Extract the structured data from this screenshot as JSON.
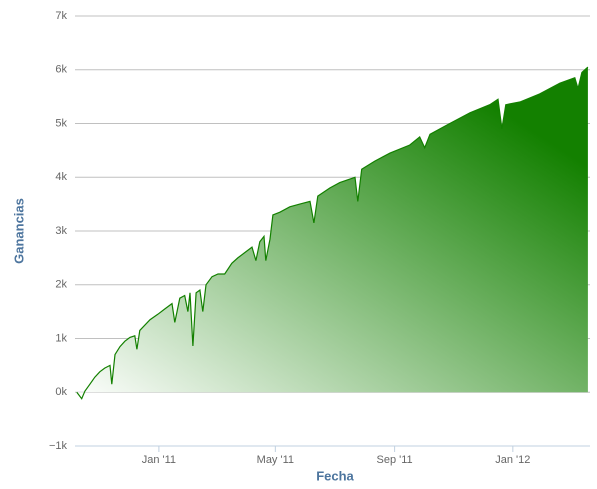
{
  "chart_data": {
    "type": "area",
    "x_title": "Fecha",
    "y_title": "Ganancias",
    "color": "#138000",
    "gradient_start_color": "#ffffff",
    "x": [
      2010.768,
      2010.782,
      2010.791,
      2010.805,
      2010.819,
      2010.833,
      2010.847,
      2010.862,
      2010.867,
      2010.876,
      2010.89,
      2010.904,
      2010.918,
      2010.932,
      2010.938,
      2010.946,
      2010.975,
      2010.997,
      2011.017,
      2011.037,
      2011.045,
      2011.059,
      2011.073,
      2011.082,
      2011.088,
      2011.096,
      2011.105,
      2011.116,
      2011.124,
      2011.133,
      2011.15,
      2011.167,
      2011.186,
      2011.206,
      2011.223,
      2011.243,
      2011.263,
      2011.274,
      2011.285,
      2011.297,
      2011.302,
      2011.314,
      2011.322,
      2011.342,
      2011.37,
      2011.398,
      2011.427,
      2011.438,
      2011.449,
      2011.483,
      2011.511,
      2011.554,
      2011.562,
      2011.573,
      2011.61,
      2011.653,
      2011.709,
      2011.737,
      2011.751,
      2011.766,
      2011.822,
      2011.879,
      2011.935,
      2011.958,
      2011.969,
      2011.98,
      2012.02,
      2012.076,
      2012.133,
      2012.175,
      2012.184,
      2012.195,
      2012.212
    ],
    "values": [
      0,
      -120,
      20,
      150,
      280,
      380,
      450,
      500,
      150,
      700,
      850,
      950,
      1020,
      1050,
      800,
      1150,
      1350,
      1450,
      1550,
      1650,
      1300,
      1750,
      1800,
      1500,
      1850,
      860,
      1850,
      1900,
      1500,
      2000,
      2150,
      2200,
      2200,
      2400,
      2500,
      2600,
      2700,
      2450,
      2800,
      2900,
      2450,
      2850,
      3300,
      3350,
      3450,
      3500,
      3550,
      3150,
      3650,
      3800,
      3900,
      4000,
      3550,
      4150,
      4300,
      4450,
      4600,
      4750,
      4550,
      4800,
      5000,
      5200,
      5350,
      5450,
      4900,
      5350,
      5400,
      5550,
      5750,
      5850,
      5650,
      5950,
      6050
    ],
    "xlim": [
      2010.763,
      2012.218
    ],
    "xticks": [
      {
        "value": 2011,
        "label": "Jan '11"
      },
      {
        "value": 2011.329,
        "label": "May '11"
      },
      {
        "value": 2011.666,
        "label": "Sep '11"
      },
      {
        "value": 2012,
        "label": "Jan '12"
      }
    ],
    "ylim": [
      -1000,
      7000
    ],
    "yticks": [
      {
        "value": -1000,
        "label": "−1k"
      },
      {
        "value": 0,
        "label": "0k"
      },
      {
        "value": 1000,
        "label": "1k"
      },
      {
        "value": 2000,
        "label": "2k"
      },
      {
        "value": 3000,
        "label": "3k"
      },
      {
        "value": 4000,
        "label": "4k"
      },
      {
        "value": 5000,
        "label": "5k"
      },
      {
        "value": 6000,
        "label": "6k"
      },
      {
        "value": 7000,
        "label": "7k"
      }
    ],
    "grid": true
  }
}
